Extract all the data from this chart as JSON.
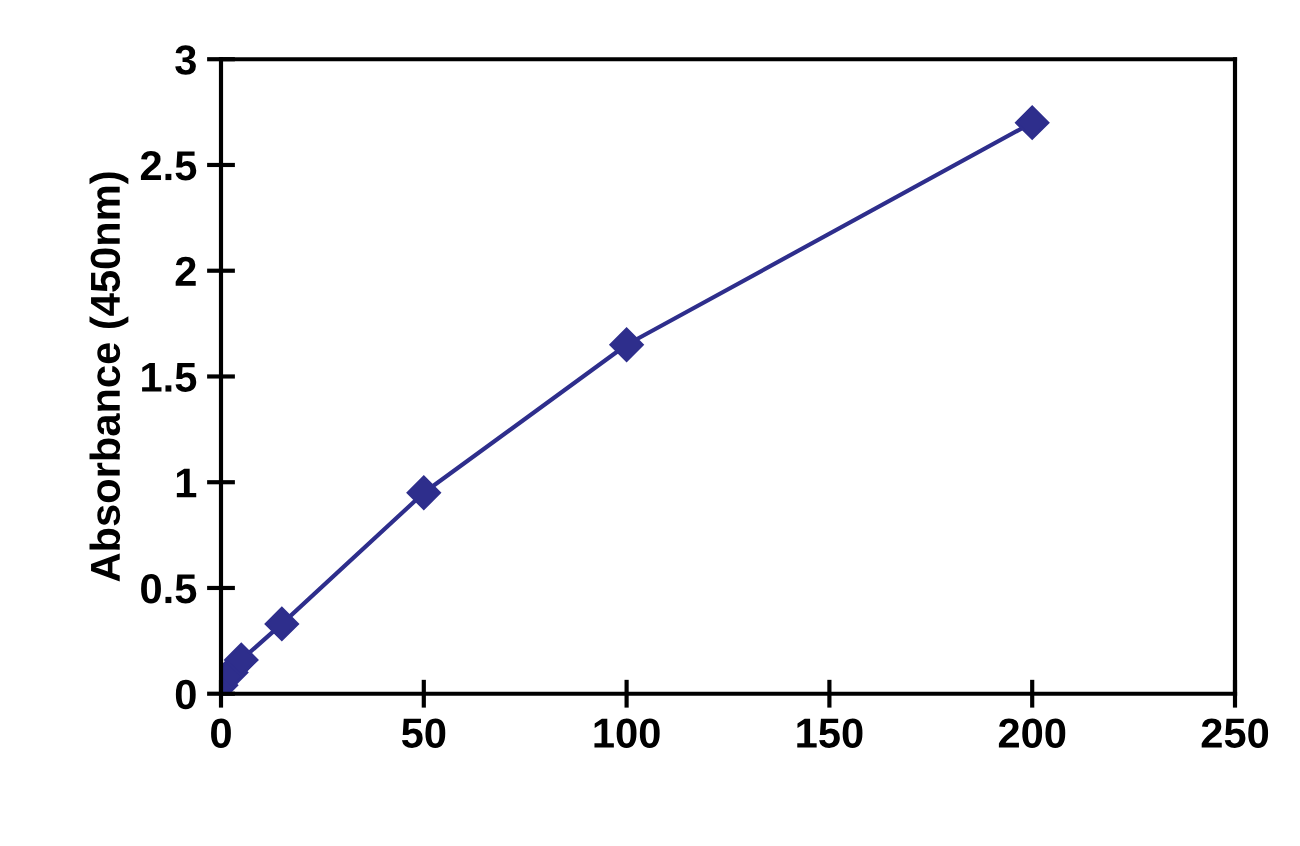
{
  "chart_data": {
    "type": "line",
    "ylabel": "Absorbance (450nm)",
    "x": [
      0,
      2.5,
      5,
      15,
      50,
      100,
      200
    ],
    "series": [
      {
        "color": "#2e2e8c",
        "values": [
          0.04,
          0.1,
          0.16,
          0.33,
          0.95,
          1.65,
          2.7
        ]
      }
    ],
    "xlim": [
      0,
      250
    ],
    "xticks": [
      0,
      50,
      100,
      150,
      200,
      250
    ],
    "ylim": [
      0,
      3
    ],
    "yticks": [
      0,
      0.5,
      1,
      1.5,
      2,
      2.5,
      3
    ],
    "marker": "diamond",
    "line_style": "solid",
    "grid": false,
    "legend": false
  }
}
